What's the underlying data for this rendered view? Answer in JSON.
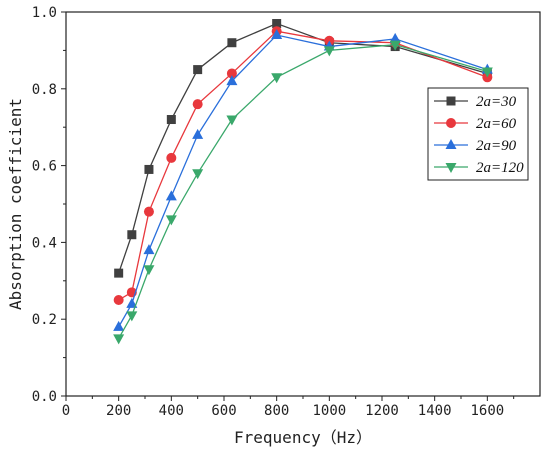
{
  "chart_data": {
    "type": "line",
    "xlabel": "Frequency（Hz）",
    "ylabel": "Absorption coefficient",
    "xlim": [
      0,
      1800
    ],
    "ylim": [
      0,
      1.0
    ],
    "xticks": [
      0,
      200,
      400,
      600,
      800,
      1000,
      1200,
      1400,
      1600
    ],
    "yticks": [
      0.0,
      0.2,
      0.4,
      0.6,
      0.8,
      1.0
    ],
    "xtick_labels": [
      "0",
      "200",
      "400",
      "600",
      "800",
      "1000",
      "1200",
      "1400",
      "1600"
    ],
    "ytick_labels": [
      "0.0",
      "0.2",
      "0.4",
      "0.6",
      "0.8",
      "1.0"
    ],
    "grid": false,
    "legend_position": "right",
    "x": [
      200,
      250,
      315,
      400,
      500,
      630,
      800,
      1000,
      1250,
      1600
    ],
    "series": [
      {
        "name": "2a=30",
        "marker": "square",
        "color": "#404040",
        "values": [
          0.32,
          0.42,
          0.59,
          0.72,
          0.85,
          0.92,
          0.97,
          0.92,
          0.91,
          0.84
        ]
      },
      {
        "name": "2a=60",
        "marker": "circle",
        "color": "#e8383d",
        "values": [
          0.25,
          0.27,
          0.48,
          0.62,
          0.76,
          0.84,
          0.95,
          0.925,
          0.92,
          0.83
        ]
      },
      {
        "name": "2a=90",
        "marker": "triangle-up",
        "color": "#2a6fdb",
        "values": [
          0.18,
          0.24,
          0.38,
          0.52,
          0.68,
          0.82,
          0.94,
          0.91,
          0.93,
          0.85
        ]
      },
      {
        "name": "2a=120",
        "marker": "triangle-down",
        "color": "#3aa86b",
        "values": [
          0.15,
          0.21,
          0.33,
          0.46,
          0.58,
          0.72,
          0.83,
          0.9,
          0.915,
          0.845
        ]
      }
    ]
  }
}
